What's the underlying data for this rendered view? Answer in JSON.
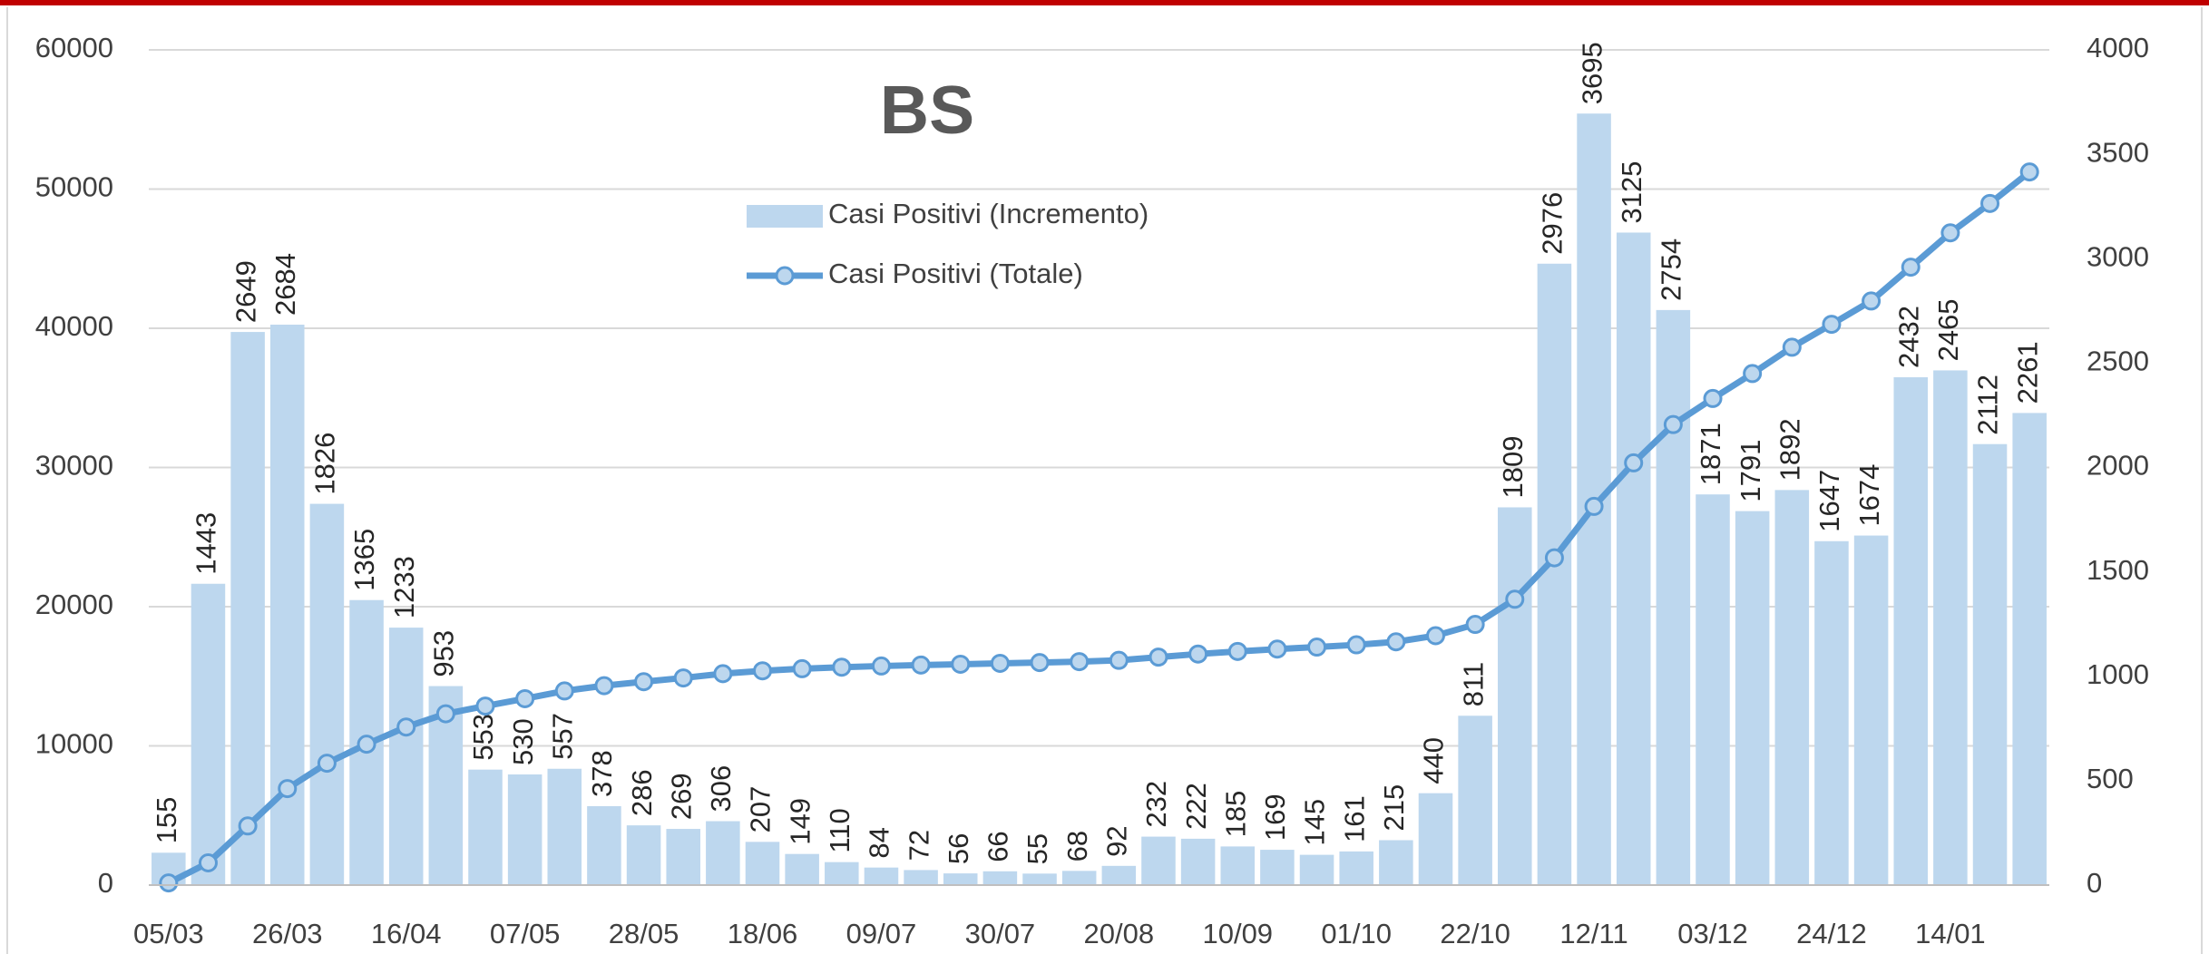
{
  "chart_data": {
    "type": "bar-line",
    "title": "BS",
    "categories": [
      "05/03",
      null,
      null,
      "26/03",
      null,
      null,
      "16/04",
      null,
      null,
      "07/05",
      null,
      null,
      "28/05",
      null,
      null,
      "18/06",
      null,
      null,
      "09/07",
      null,
      null,
      "30/07",
      null,
      null,
      "20/08",
      null,
      null,
      "10/09",
      null,
      null,
      "01/10",
      null,
      null,
      "22/10",
      null,
      null,
      "12/11",
      null,
      null,
      "03/12",
      null,
      null,
      "24/12",
      null,
      null,
      "14/01",
      null,
      null
    ],
    "series": [
      {
        "name": "Casi Positivi (Incremento)",
        "type": "bar",
        "axis": "y2",
        "color": "#bdd7ee",
        "values": [
          155,
          1443,
          2649,
          2684,
          1826,
          1365,
          1233,
          953,
          553,
          530,
          557,
          378,
          286,
          269,
          306,
          207,
          149,
          110,
          84,
          72,
          56,
          66,
          55,
          68,
          92,
          232,
          222,
          185,
          169,
          145,
          161,
          215,
          440,
          811,
          1809,
          2976,
          3695,
          3125,
          2754,
          1871,
          1791,
          1892,
          1647,
          1674,
          2432,
          2465,
          2112,
          2261
        ]
      },
      {
        "name": "Casi Positivi (Totale)",
        "type": "line",
        "axis": "y",
        "color": "#5b9bd5",
        "values": [
          155,
          1598,
          4247,
          6931,
          8757,
          10122,
          11355,
          12308,
          12861,
          13391,
          13948,
          14326,
          14612,
          14881,
          15187,
          15394,
          15543,
          15653,
          15737,
          15809,
          15865,
          15931,
          15986,
          16054,
          16146,
          16378,
          16600,
          16785,
          16954,
          17099,
          17260,
          17475,
          17915,
          18726,
          20535,
          23511,
          27206,
          30331,
          33085,
          34956,
          36747,
          38639,
          40286,
          41960,
          44392,
          46857,
          48969,
          51230
        ]
      }
    ],
    "ylim": [
      0,
      60000
    ],
    "yticks": [
      0,
      10000,
      20000,
      30000,
      40000,
      50000,
      60000
    ],
    "y2lim": [
      0,
      4000
    ],
    "y2ticks": [
      0,
      500,
      1000,
      1500,
      2000,
      2500,
      3000,
      3500,
      4000
    ],
    "grid": true
  }
}
